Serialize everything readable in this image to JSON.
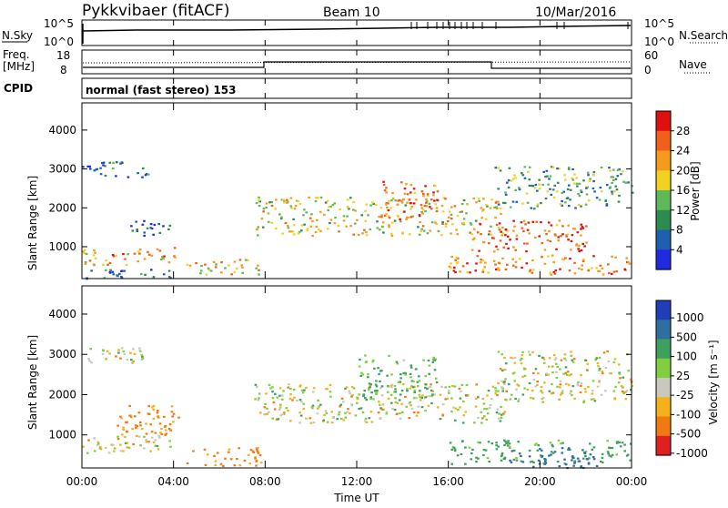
{
  "header": {
    "station": "Pykkvibaer (fitACF)",
    "beam": "Beam 10",
    "date": "10/Mar/2016"
  },
  "panels": {
    "nsky_label": "N.Sky",
    "nsearch_label": "N.Search",
    "nsky_ticks_left": [
      "10^5",
      "10^0"
    ],
    "nsky_ticks_right": [
      "10^5",
      "10^0"
    ],
    "freq_label_1": "Freq.",
    "freq_label_2": "[MHz]",
    "freq_ticks": [
      "18",
      "8"
    ],
    "nave_label": "Nave",
    "nave_ticks": [
      "60",
      "0"
    ],
    "cpid_label": "CPID",
    "cpid_value": "normal (fast stereo) 153"
  },
  "colors": {
    "power_scale": [
      "#1f2be0",
      "#1f5fb0",
      "#2f8a50",
      "#5fb85a",
      "#f2d21f",
      "#f59a1a",
      "#f0601a",
      "#e01010"
    ],
    "velocity_scale": [
      "#1f3fb8",
      "#2f6f9f",
      "#3f9f5f",
      "#7fcf3f",
      "#c8c8c0",
      "#f5b01a",
      "#f07a10",
      "#e02020"
    ]
  },
  "chart_data": [
    {
      "type": "heatmap",
      "title": "",
      "xlabel": "Time UT",
      "ylabel": "Slant Range [km]",
      "x_ticks": [
        "00:00",
        "04:00",
        "08:00",
        "12:00",
        "16:00",
        "20:00",
        "00:00"
      ],
      "xlim_hours": [
        0,
        24
      ],
      "y_ticks": [
        "1000",
        "2000",
        "3000",
        "4000"
      ],
      "ylim_km": [
        180,
        4700
      ],
      "colorbar_label": "Power [dB]",
      "colorbar_ticks": [
        "4",
        "8",
        "12",
        "16",
        "20",
        "24",
        "28"
      ],
      "echo_regions": [
        {
          "t_start": 0.0,
          "t_end": 4.3,
          "range_from_km": 200,
          "range_to_km": 450,
          "level_db": 6
        },
        {
          "t_start": 0.0,
          "t_end": 4.1,
          "range_from_km": 550,
          "range_to_km": 1000,
          "level_db": 22
        },
        {
          "t_start": 2.0,
          "t_end": 4.0,
          "range_from_km": 1300,
          "range_to_km": 1700,
          "level_db": 5
        },
        {
          "t_start": 0.0,
          "t_end": 3.0,
          "range_from_km": 2800,
          "range_to_km": 3200,
          "level_db": 6
        },
        {
          "t_start": 4.5,
          "t_end": 7.8,
          "range_from_km": 300,
          "range_to_km": 700,
          "level_db": 20
        },
        {
          "t_start": 7.5,
          "t_end": 18.5,
          "range_from_km": 1300,
          "range_to_km": 2300,
          "level_db": 18
        },
        {
          "t_start": 13.0,
          "t_end": 15.5,
          "range_from_km": 1700,
          "range_to_km": 2700,
          "level_db": 25
        },
        {
          "t_start": 16.0,
          "t_end": 24.0,
          "range_from_km": 300,
          "range_to_km": 800,
          "level_db": 24
        },
        {
          "t_start": 17.0,
          "t_end": 22.0,
          "range_from_km": 900,
          "range_to_km": 1700,
          "level_db": 26
        },
        {
          "t_start": 18.0,
          "t_end": 24.0,
          "range_from_km": 2000,
          "range_to_km": 3100,
          "level_db": 12
        }
      ]
    },
    {
      "type": "heatmap",
      "title": "",
      "xlabel": "Time UT",
      "ylabel": "Slant Range [km]",
      "x_ticks": [
        "00:00",
        "04:00",
        "08:00",
        "12:00",
        "16:00",
        "20:00",
        "00:00"
      ],
      "xlim_hours": [
        0,
        24
      ],
      "y_ticks": [
        "1000",
        "2000",
        "3000",
        "4000"
      ],
      "ylim_km": [
        180,
        4700
      ],
      "colorbar_label": "Velocity [m s⁻¹]",
      "colorbar_ticks": [
        "1000",
        "500",
        "100",
        "25",
        "-25",
        "-100",
        "-500",
        "-1000"
      ],
      "echo_regions": [
        {
          "t_start": 0.0,
          "t_end": 4.1,
          "range_from_km": 550,
          "range_to_km": 1000,
          "velocity_ms": 0
        },
        {
          "t_start": 0.0,
          "t_end": 3.0,
          "range_from_km": 2800,
          "range_to_km": 3200,
          "velocity_ms": 0
        },
        {
          "t_start": 1.5,
          "t_end": 4.2,
          "range_from_km": 900,
          "range_to_km": 1800,
          "velocity_ms": -150
        },
        {
          "t_start": 4.5,
          "t_end": 7.8,
          "range_from_km": 250,
          "range_to_km": 700,
          "velocity_ms": -150
        },
        {
          "t_start": 7.5,
          "t_end": 18.5,
          "range_from_km": 1300,
          "range_to_km": 2300,
          "velocity_ms": 0
        },
        {
          "t_start": 12.0,
          "t_end": 15.5,
          "range_from_km": 1800,
          "range_to_km": 3000,
          "velocity_ms": 150
        },
        {
          "t_start": 16.0,
          "t_end": 24.0,
          "range_from_km": 300,
          "range_to_km": 900,
          "velocity_ms": 200
        },
        {
          "t_start": 18.5,
          "t_end": 22.5,
          "range_from_km": 200,
          "range_to_km": 700,
          "velocity_ms": 700
        },
        {
          "t_start": 18.0,
          "t_end": 24.0,
          "range_from_km": 1800,
          "range_to_km": 3100,
          "velocity_ms": 0
        }
      ]
    }
  ]
}
